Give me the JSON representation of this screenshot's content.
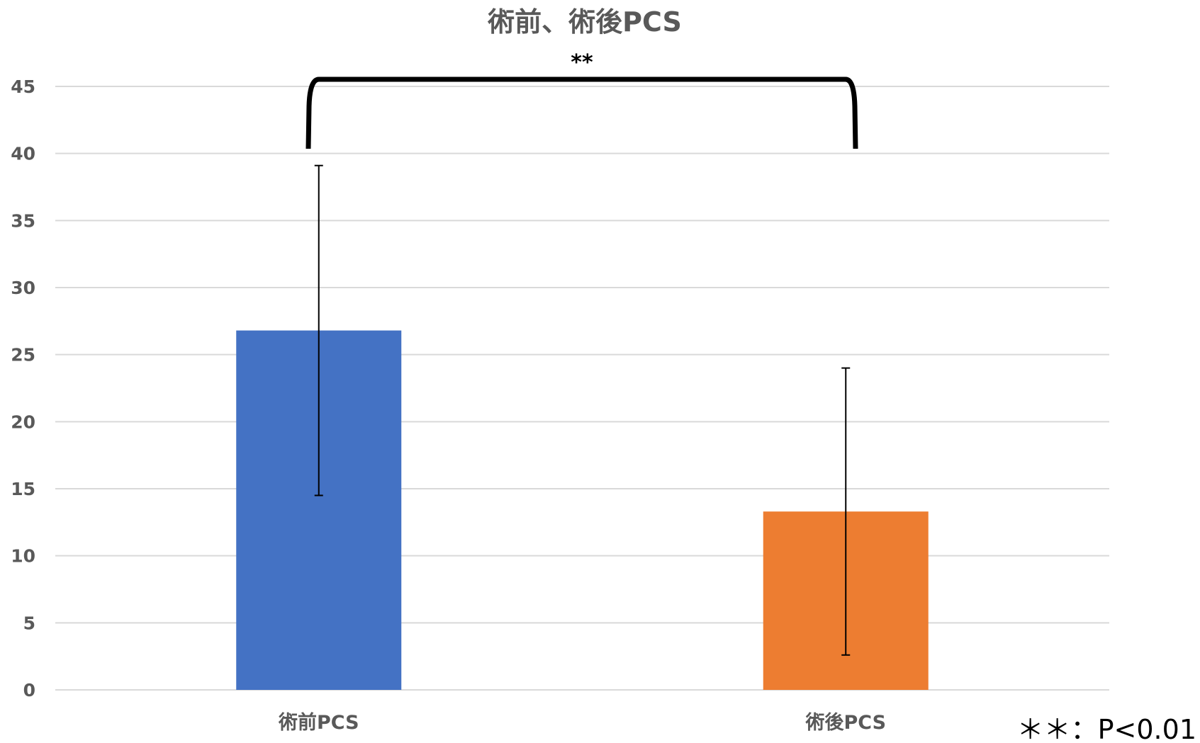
{
  "chart_data": {
    "type": "bar",
    "title": "術前、術後PCS",
    "categories": [
      "術前PCS",
      "術後PCS"
    ],
    "values": [
      26.8,
      13.3
    ],
    "error_bars": [
      {
        "low": 14.5,
        "high": 39.1
      },
      {
        "low": 2.6,
        "high": 24.0
      }
    ],
    "colors": [
      "#4472c4",
      "#ed7d31"
    ],
    "xlabel": "",
    "ylabel": "",
    "ylim": [
      0,
      45
    ],
    "yticks": [
      0,
      5,
      10,
      15,
      20,
      25,
      30,
      35,
      40,
      45
    ],
    "grid": true,
    "significance": {
      "label": "**",
      "between": [
        "術前PCS",
        "術後PCS"
      ]
    },
    "note": "＊＊：P<0.01"
  }
}
